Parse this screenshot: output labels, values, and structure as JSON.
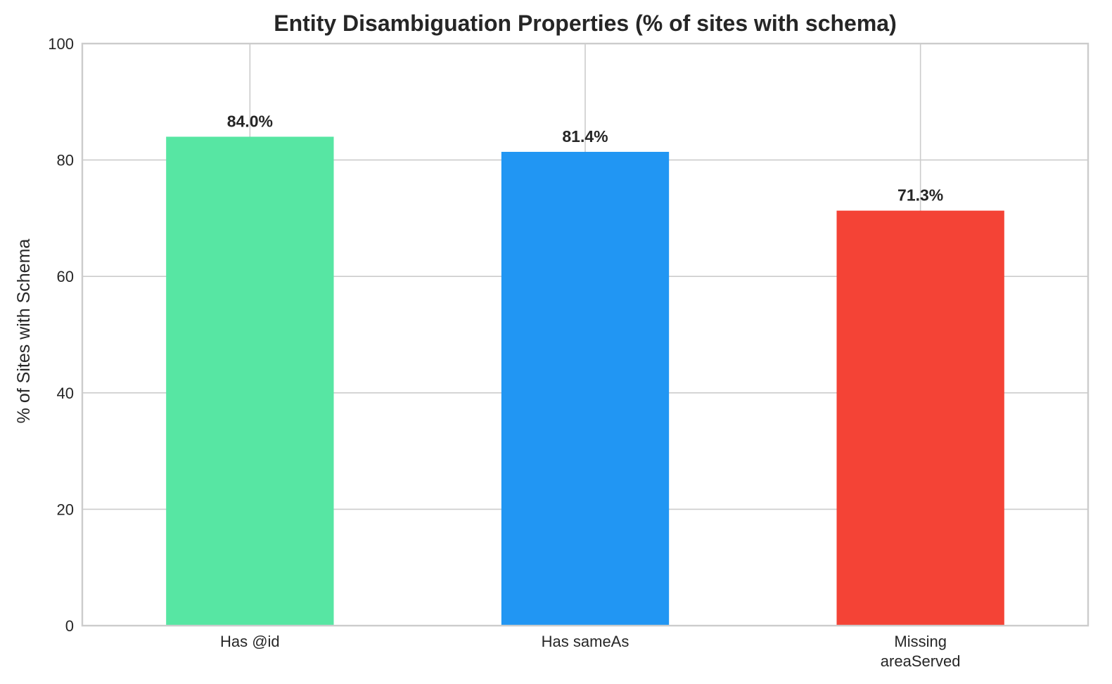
{
  "chart_data": {
    "type": "bar",
    "title": "Entity Disambiguation Properties (% of sites with schema)",
    "xlabel": "",
    "ylabel": "% of Sites with Schema",
    "ylim": [
      0,
      100
    ],
    "yticks": [
      0,
      20,
      40,
      60,
      80,
      100
    ],
    "grid": true,
    "categories": [
      [
        "Has @id"
      ],
      [
        "Has sameAs"
      ],
      [
        "Missing",
        "areaServed"
      ]
    ],
    "values": [
      84.0,
      81.4,
      71.3
    ],
    "value_labels": [
      "84.0%",
      "81.4%",
      "71.3%"
    ],
    "colors": [
      "#57e6a3",
      "#2196f3",
      "#f44336"
    ]
  }
}
